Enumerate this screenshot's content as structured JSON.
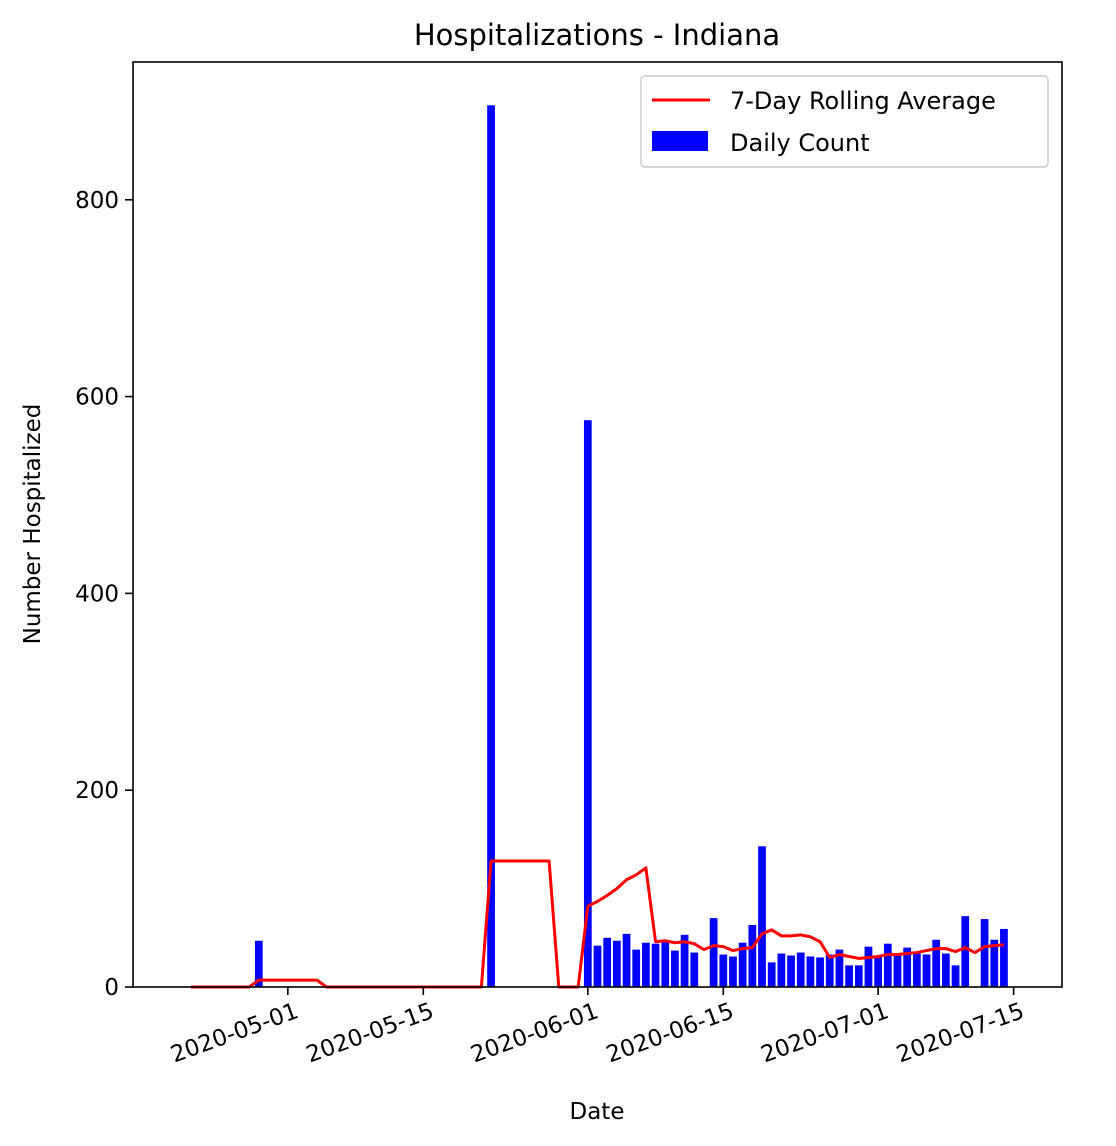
{
  "chart_data": {
    "type": "bar",
    "title": "Hospitalizations - Indiana",
    "xlabel": "Date",
    "ylabel": "Number Hospitalized",
    "ylim": [
      0,
      940
    ],
    "xlim": [
      "2020-04-15",
      "2020-07-20"
    ],
    "yticks": [
      0,
      200,
      400,
      600,
      800
    ],
    "xticks": [
      "2020-05-01",
      "2020-05-15",
      "2020-06-01",
      "2020-06-15",
      "2020-07-01",
      "2020-07-15"
    ],
    "grid": false,
    "legend_position": "top-right",
    "series": [
      {
        "name": "Daily Count",
        "kind": "bar",
        "color": "#0000ff",
        "points": [
          [
            "2020-04-22",
            0
          ],
          [
            "2020-04-23",
            0
          ],
          [
            "2020-04-24",
            0
          ],
          [
            "2020-04-25",
            0
          ],
          [
            "2020-04-26",
            0
          ],
          [
            "2020-04-27",
            0
          ],
          [
            "2020-04-28",
            47
          ],
          [
            "2020-04-29",
            0
          ],
          [
            "2020-04-30",
            0
          ],
          [
            "2020-05-01",
            0
          ],
          [
            "2020-05-02",
            0
          ],
          [
            "2020-05-03",
            0
          ],
          [
            "2020-05-04",
            0
          ],
          [
            "2020-05-05",
            0
          ],
          [
            "2020-05-06",
            0
          ],
          [
            "2020-05-22",
            896
          ],
          [
            "2020-06-01",
            576
          ],
          [
            "2020-06-02",
            42
          ],
          [
            "2020-06-03",
            50
          ],
          [
            "2020-06-04",
            47
          ],
          [
            "2020-06-05",
            54
          ],
          [
            "2020-06-06",
            38
          ],
          [
            "2020-06-07",
            45
          ],
          [
            "2020-06-08",
            44
          ],
          [
            "2020-06-09",
            46
          ],
          [
            "2020-06-10",
            37
          ],
          [
            "2020-06-11",
            53
          ],
          [
            "2020-06-12",
            35
          ],
          [
            "2020-06-14",
            70
          ],
          [
            "2020-06-15",
            33
          ],
          [
            "2020-06-16",
            31
          ],
          [
            "2020-06-17",
            45
          ],
          [
            "2020-06-18",
            63
          ],
          [
            "2020-06-19",
            143
          ],
          [
            "2020-06-20",
            25
          ],
          [
            "2020-06-21",
            34
          ],
          [
            "2020-06-22",
            32
          ],
          [
            "2020-06-23",
            35
          ],
          [
            "2020-06-24",
            31
          ],
          [
            "2020-06-25",
            30
          ],
          [
            "2020-06-26",
            33
          ],
          [
            "2020-06-27",
            38
          ],
          [
            "2020-06-28",
            22
          ],
          [
            "2020-06-29",
            22
          ],
          [
            "2020-06-30",
            41
          ],
          [
            "2020-07-01",
            31
          ],
          [
            "2020-07-02",
            44
          ],
          [
            "2020-07-03",
            34
          ],
          [
            "2020-07-04",
            40
          ],
          [
            "2020-07-05",
            35
          ],
          [
            "2020-07-06",
            33
          ],
          [
            "2020-07-07",
            48
          ],
          [
            "2020-07-08",
            34
          ],
          [
            "2020-07-09",
            22
          ],
          [
            "2020-07-10",
            72
          ],
          [
            "2020-07-12",
            69
          ],
          [
            "2020-07-13",
            48
          ],
          [
            "2020-07-14",
            59
          ]
        ]
      },
      {
        "name": "7-Day Rolling Average",
        "kind": "line",
        "color": "#ff0000",
        "points": [
          [
            "2020-04-21",
            0
          ],
          [
            "2020-04-27",
            0
          ],
          [
            "2020-04-28",
            7
          ],
          [
            "2020-05-04",
            7
          ],
          [
            "2020-05-05",
            0
          ],
          [
            "2020-05-21",
            0
          ],
          [
            "2020-05-22",
            128
          ],
          [
            "2020-05-28",
            128
          ],
          [
            "2020-05-29",
            0
          ],
          [
            "2020-05-31",
            0
          ],
          [
            "2020-06-01",
            82
          ],
          [
            "2020-06-02",
            87
          ],
          [
            "2020-06-03",
            93
          ],
          [
            "2020-06-04",
            100
          ],
          [
            "2020-06-05",
            109
          ],
          [
            "2020-06-06",
            114
          ],
          [
            "2020-06-07",
            121
          ],
          [
            "2020-06-08",
            46
          ],
          [
            "2020-06-09",
            47
          ],
          [
            "2020-06-10",
            45
          ],
          [
            "2020-06-11",
            46
          ],
          [
            "2020-06-12",
            44
          ],
          [
            "2020-06-13",
            38
          ],
          [
            "2020-06-14",
            42
          ],
          [
            "2020-06-15",
            41
          ],
          [
            "2020-06-16",
            37
          ],
          [
            "2020-06-17",
            39
          ],
          [
            "2020-06-18",
            40
          ],
          [
            "2020-06-19",
            54
          ],
          [
            "2020-06-20",
            58
          ],
          [
            "2020-06-21",
            52
          ],
          [
            "2020-06-22",
            52
          ],
          [
            "2020-06-23",
            53
          ],
          [
            "2020-06-24",
            51
          ],
          [
            "2020-06-25",
            46
          ],
          [
            "2020-06-26",
            30
          ],
          [
            "2020-06-27",
            33
          ],
          [
            "2020-06-28",
            31
          ],
          [
            "2020-06-29",
            29
          ],
          [
            "2020-06-30",
            30
          ],
          [
            "2020-07-01",
            31
          ],
          [
            "2020-07-02",
            33
          ],
          [
            "2020-07-03",
            33
          ],
          [
            "2020-07-04",
            34
          ],
          [
            "2020-07-05",
            35
          ],
          [
            "2020-07-06",
            37
          ],
          [
            "2020-07-07",
            39
          ],
          [
            "2020-07-08",
            39
          ],
          [
            "2020-07-09",
            36
          ],
          [
            "2020-07-10",
            40
          ],
          [
            "2020-07-11",
            35
          ],
          [
            "2020-07-12",
            41
          ],
          [
            "2020-07-13",
            42
          ],
          [
            "2020-07-14",
            43
          ]
        ]
      }
    ]
  }
}
